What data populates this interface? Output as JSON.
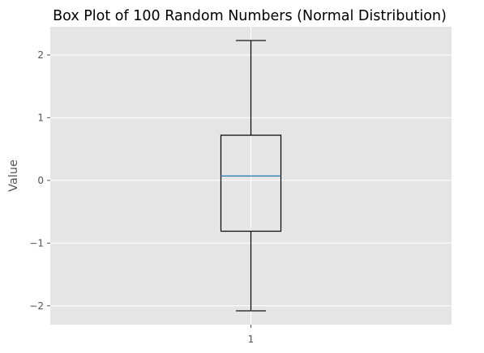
{
  "chart_data": {
    "type": "box",
    "title": "Box Plot of 100 Random Numbers (Normal Distribution)",
    "xlabel": "",
    "ylabel": "Value",
    "categories": [
      "1"
    ],
    "boxes": [
      {
        "category": "1",
        "whisker_low": -2.08,
        "q1": -0.81,
        "median": 0.07,
        "q3": 0.72,
        "whisker_high": 2.23
      }
    ],
    "ylim": [
      -2.3,
      2.45
    ],
    "yticks": [
      -2,
      -1,
      0,
      1,
      2
    ],
    "ytick_labels": [
      "−2",
      "−1",
      "0",
      "1",
      "2"
    ],
    "grid": true,
    "colors": {
      "background": "#e5e5e5",
      "grid": "#ffffff",
      "box": "#000000",
      "median": "#1f77b4",
      "tick_text": "#555555"
    }
  }
}
